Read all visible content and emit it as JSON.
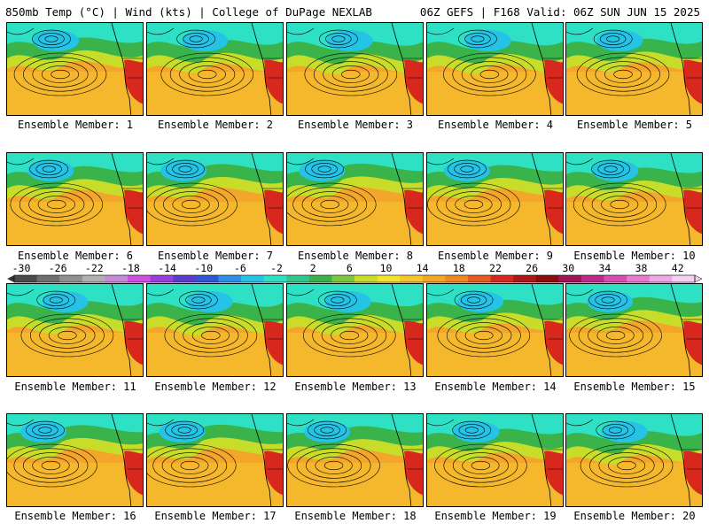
{
  "header": {
    "left": "850mb Temp (°C) | Wind (kts) | College of DuPage NEXLAB",
    "right": "06Z GEFS | F168 Valid: 06Z SUN JUN 15 2025"
  },
  "member_label_prefix": "Ensemble Member:",
  "members": [
    "1",
    "2",
    "3",
    "4",
    "5",
    "6",
    "7",
    "8",
    "9",
    "10",
    "11",
    "12",
    "13",
    "14",
    "15",
    "16",
    "17",
    "18",
    "19",
    "20"
  ],
  "colorbar": {
    "labels": [
      "-30",
      "-26",
      "-22",
      "-18",
      "-14",
      "-10",
      "-6",
      "-2",
      "2",
      "6",
      "10",
      "14",
      "18",
      "22",
      "26",
      "30",
      "34",
      "38",
      "42"
    ],
    "colors": [
      "#4a4a4a",
      "#6e6e6e",
      "#8f8f8f",
      "#b0b0b0",
      "#c78ad9",
      "#d04fe0",
      "#9a3ce0",
      "#5b3ccf",
      "#2f55d8",
      "#2f8fe8",
      "#25c3e6",
      "#2ee0c4",
      "#2fc88a",
      "#39b34a",
      "#7cc73a",
      "#c9dc2a",
      "#f4e52c",
      "#f7c62a",
      "#f5a623",
      "#f08a1e",
      "#e85a1e",
      "#d8281e",
      "#b01616",
      "#8a0c0c",
      "#a0165a",
      "#c02a8c",
      "#d84cb4",
      "#e87ad0",
      "#f0a8e4",
      "#f6d0f0"
    ]
  },
  "map_colors": {
    "ocean_warm": "#f4a62a",
    "subtropic": "#f6c82c",
    "mid": "#c8dc2a",
    "green": "#39b34a",
    "cool": "#2ee0c4",
    "cold": "#25c3e6",
    "hot": "#d8281e"
  }
}
